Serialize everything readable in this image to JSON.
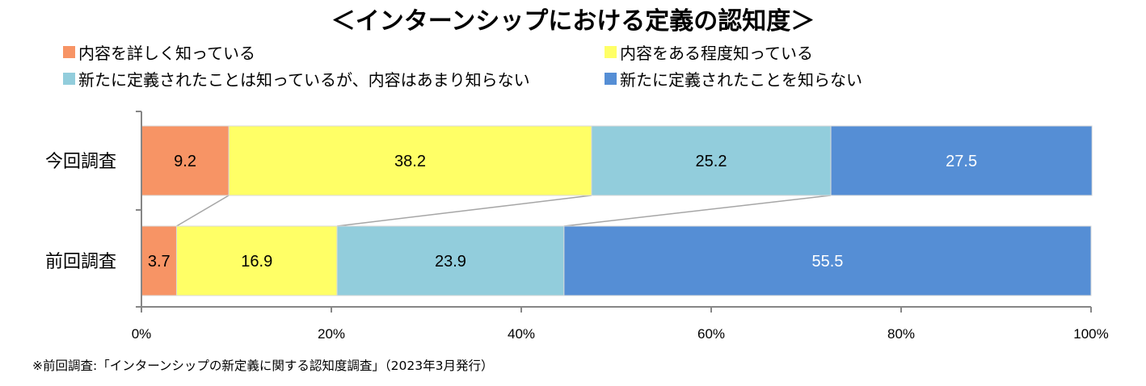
{
  "chart_data": {
    "type": "bar",
    "orientation": "horizontal-stacked-100",
    "title": "＜インターンシップにおける定義の認知度＞",
    "categories": [
      "今回調査",
      "前回調査"
    ],
    "series": [
      {
        "name": "内容を詳しく知っている",
        "color": "#f79465",
        "values": [
          9.2,
          3.7
        ]
      },
      {
        "name": "内容をある程度知っている",
        "color": "#ffff66",
        "values": [
          38.2,
          16.9
        ]
      },
      {
        "name": "新たに定義されたことは知っているが、内容はあまり知らない",
        "color": "#92cddc",
        "values": [
          25.2,
          23.9
        ]
      },
      {
        "name": "新たに定義されたことを知らない",
        "color": "#558ed5",
        "values": [
          27.5,
          55.5
        ]
      }
    ],
    "value_labels": [
      [
        "9.2",
        "38.2",
        "25.2",
        "27.5"
      ],
      [
        "3.7",
        "16.9",
        "23.9",
        "55.5"
      ]
    ],
    "value_label_colors": [
      "#000000",
      "#000000",
      "#000000",
      "#ffffff"
    ],
    "xlim": [
      0,
      100
    ],
    "ticks": [
      0,
      20,
      40,
      60,
      80,
      100
    ],
    "tick_labels": [
      "0%",
      "20%",
      "40%",
      "60%",
      "80%",
      "100%"
    ],
    "legend_position": "top",
    "series_lines": true,
    "grid": false,
    "footnote": "※前回調査:「インターンシップの新定義に関する認知度調査」（2023年3月発行）"
  }
}
